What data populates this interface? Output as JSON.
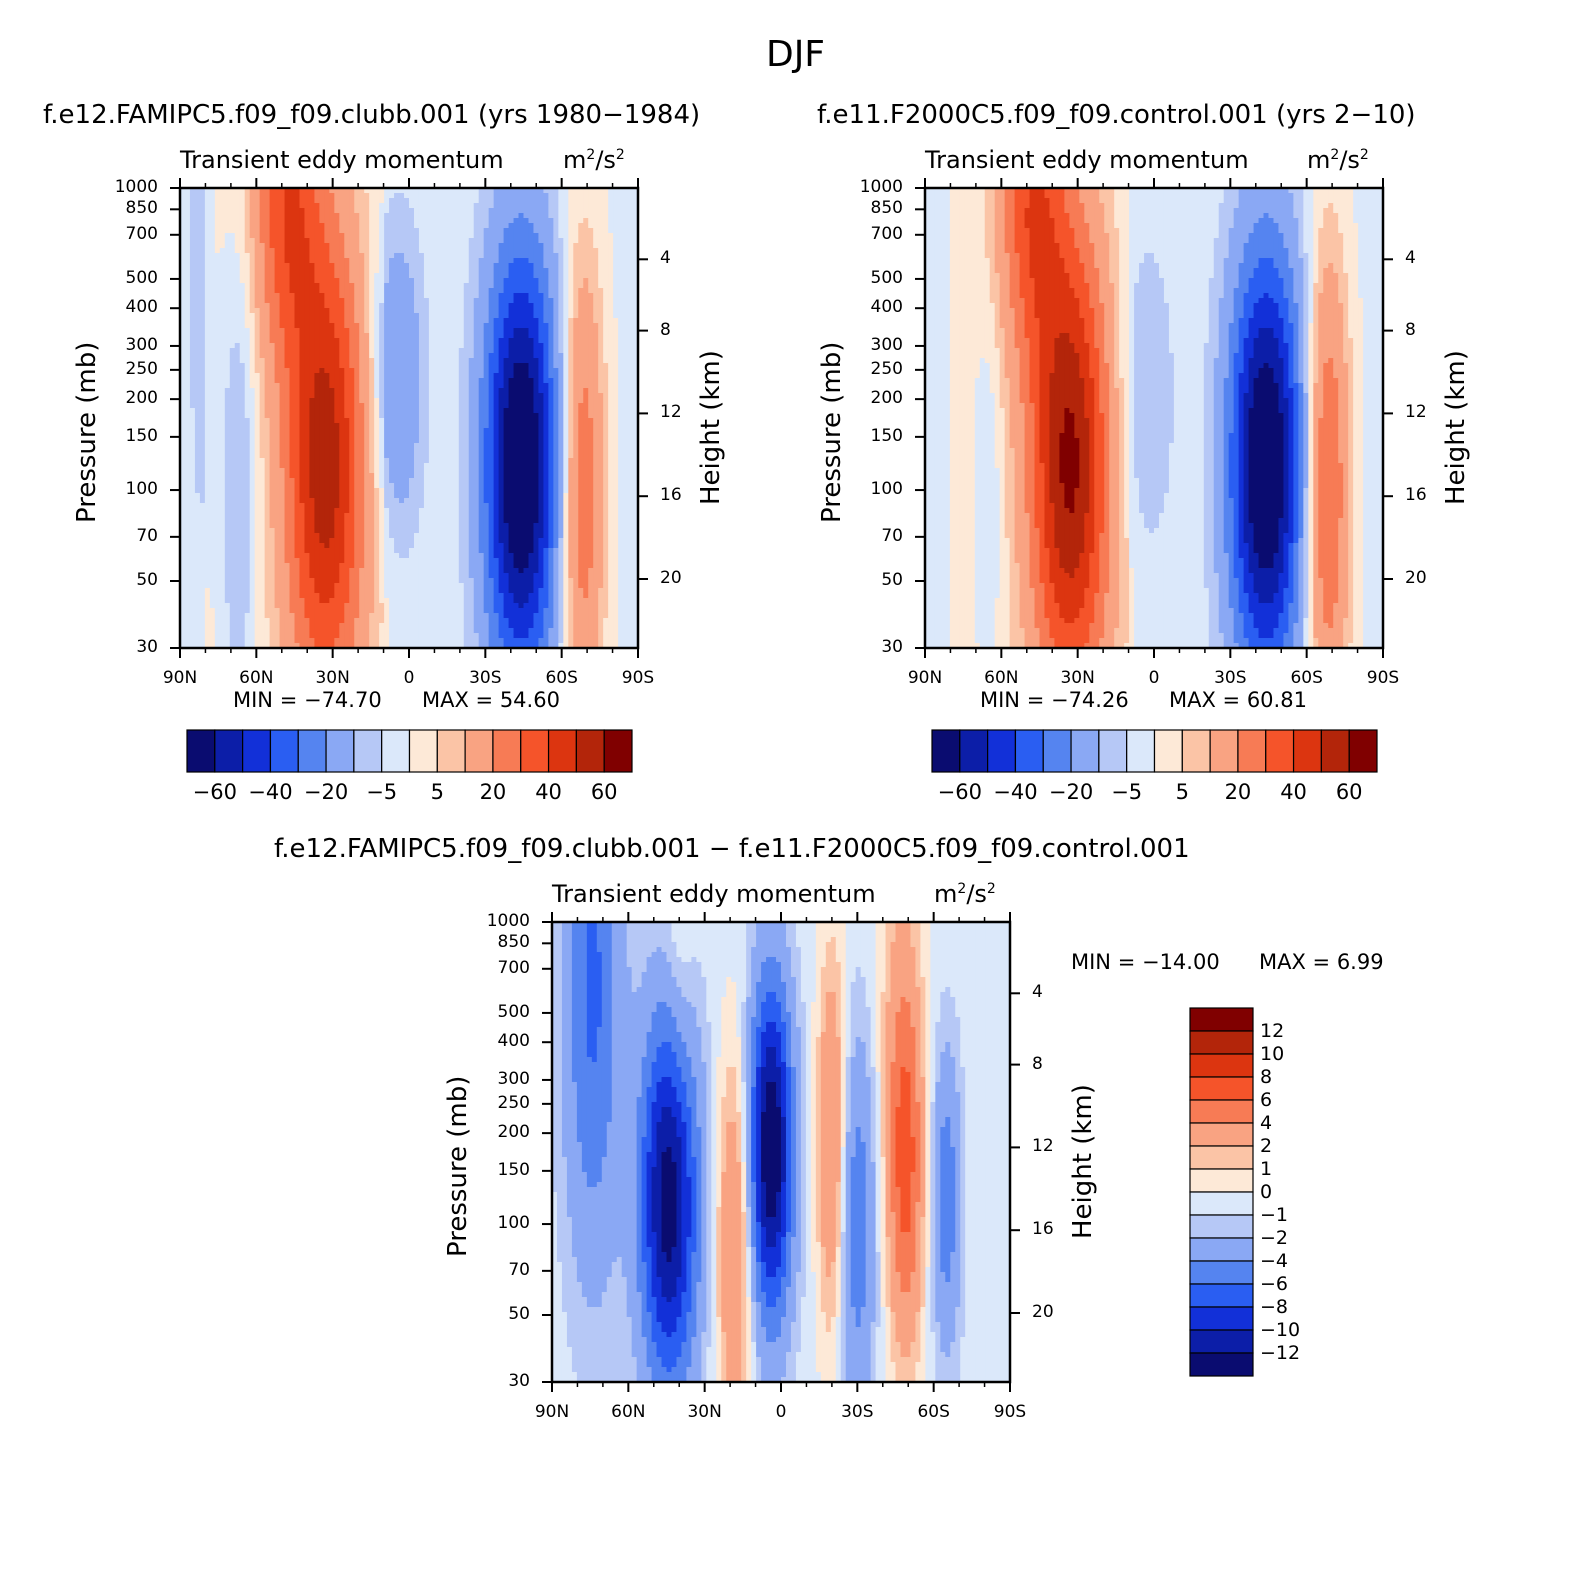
{
  "main_title": "DJF",
  "chart_data": [
    {
      "type": "heatmap",
      "id": "p1",
      "case_title": "f.e12.FAMIPC5.f09_f09.clubb.001 (yrs 1980−1984)",
      "subtitle": "Transient eddy momentum",
      "units_base": "m",
      "units_mid": "/s",
      "units_exp": "2",
      "x_ticks": [
        "90N",
        "60N",
        "30N",
        "0",
        "30S",
        "60S",
        "90S"
      ],
      "y_ticks": [
        "30",
        "50",
        "70",
        "100",
        "150",
        "200",
        "250",
        "300",
        "400",
        "500",
        "700",
        "850",
        "1000"
      ],
      "y_label": "Pressure (mb)",
      "y2_ticks": [
        "20",
        "16",
        "12",
        "8",
        "4"
      ],
      "y2_label": "Height (km)",
      "min_text": "MIN = −74.70",
      "max_text": "MAX = 54.60",
      "colorbar_labels": [
        "−60",
        "−40",
        "−20",
        "−5",
        "5",
        "20",
        "40",
        "60"
      ],
      "features": [
        {
          "lat": 33,
          "p": 250,
          "amp": 54.6,
          "sx": 11,
          "sz": 1.25
        },
        {
          "lat": 48,
          "p": 32,
          "amp": 34,
          "sx": 9,
          "sz": 0.85
        },
        {
          "lat": -44,
          "p": 250,
          "amp": -74.7,
          "sx": 10,
          "sz": 1.15
        },
        {
          "lat": -68,
          "p": 300,
          "amp": 30,
          "sx": 6,
          "sz": 1.25
        },
        {
          "lat": 5,
          "p": 130,
          "amp": -20,
          "sx": 7,
          "sz": 0.8
        },
        {
          "lat": 67,
          "p": 300,
          "amp": -12,
          "sx": 5,
          "sz": 1.3
        },
        {
          "lat": 82,
          "p": 60,
          "amp": -8,
          "sx": 3,
          "sz": 1.3
        }
      ]
    },
    {
      "type": "heatmap",
      "id": "p2",
      "case_title": "f.e11.F2000C5.f09_f09.control.001 (yrs 2−10)",
      "subtitle": "Transient eddy momentum",
      "units_base": "m",
      "units_mid": "/s",
      "units_exp": "2",
      "x_ticks": [
        "90N",
        "60N",
        "30N",
        "0",
        "30S",
        "60S",
        "90S"
      ],
      "y_ticks": [
        "30",
        "50",
        "70",
        "100",
        "150",
        "200",
        "250",
        "300",
        "400",
        "500",
        "700",
        "850",
        "1000"
      ],
      "y_label": "Pressure (mb)",
      "y2_ticks": [
        "20",
        "16",
        "12",
        "8",
        "4"
      ],
      "y2_label": "Height (km)",
      "min_text": "MIN = −74.26",
      "max_text": "MAX = 60.81",
      "colorbar_labels": [
        "−60",
        "−40",
        "−20",
        "−5",
        "5",
        "20",
        "40",
        "60"
      ],
      "features": [
        {
          "lat": 33,
          "p": 250,
          "amp": 60.8,
          "sx": 11,
          "sz": 1.25
        },
        {
          "lat": 48,
          "p": 32,
          "amp": 34,
          "sx": 9,
          "sz": 0.85
        },
        {
          "lat": -44,
          "p": 250,
          "amp": -74.3,
          "sx": 10,
          "sz": 1.15
        },
        {
          "lat": -68,
          "p": 300,
          "amp": 34,
          "sx": 6,
          "sz": 1.25
        },
        {
          "lat": 5,
          "p": 150,
          "amp": -9,
          "sx": 9,
          "sz": 0.9
        },
        {
          "lat": 65,
          "p": 300,
          "amp": -6,
          "sx": 4,
          "sz": 1.0
        }
      ]
    },
    {
      "type": "heatmap",
      "id": "p3",
      "case_title": "f.e12.FAMIPC5.f09_f09.clubb.001 − f.e11.F2000C5.f09_f09.control.001",
      "subtitle": "Transient eddy momentum",
      "units_base": "m",
      "units_mid": "/s",
      "units_exp": "2",
      "x_ticks": [
        "90N",
        "60N",
        "30N",
        "0",
        "30S",
        "60S",
        "90S"
      ],
      "y_ticks": [
        "30",
        "50",
        "70",
        "100",
        "150",
        "200",
        "250",
        "300",
        "400",
        "500",
        "700",
        "850",
        "1000"
      ],
      "y_label": "Pressure (mb)",
      "y2_ticks": [
        "20",
        "16",
        "12",
        "8",
        "4"
      ],
      "y2_label": "Height (km)",
      "min_text": "MIN = −14.00",
      "max_text": "MAX = 6.99",
      "colorbar_labels": [
        "12",
        "10",
        "8",
        "6",
        "4",
        "2",
        "1",
        "0",
        "−1",
        "−2",
        "−4",
        "−6",
        "−8",
        "−10",
        "−12"
      ],
      "features": [
        {
          "lat": 44,
          "p": 250,
          "amp": -13,
          "sx": 8,
          "sz": 1.0
        },
        {
          "lat": 4,
          "p": 170,
          "amp": -14,
          "sx": 6,
          "sz": 0.9
        },
        {
          "lat": 18,
          "p": 350,
          "amp": 5,
          "sx": 5,
          "sz": 1.0
        },
        {
          "lat": -20,
          "p": 160,
          "amp": 5,
          "sx": 4,
          "sz": 1.0
        },
        {
          "lat": -49,
          "p": 190,
          "amp": 7,
          "sx": 5,
          "sz": 1.0
        },
        {
          "lat": -30,
          "p": 300,
          "amp": -5,
          "sx": 5,
          "sz": 1.0
        },
        {
          "lat": -65,
          "p": 250,
          "amp": -5,
          "sx": 4,
          "sz": 0.8
        },
        {
          "lat": 74,
          "p": 50,
          "amp": -6,
          "sx": 8,
          "sz": 1.5
        },
        {
          "lat": 40,
          "p": 50,
          "amp": 1.5,
          "sx": 4,
          "sz": 1.0
        },
        {
          "lat": -46,
          "p": 50,
          "amp": 1.5,
          "sx": 6,
          "sz": 1.2
        }
      ]
    }
  ]
}
